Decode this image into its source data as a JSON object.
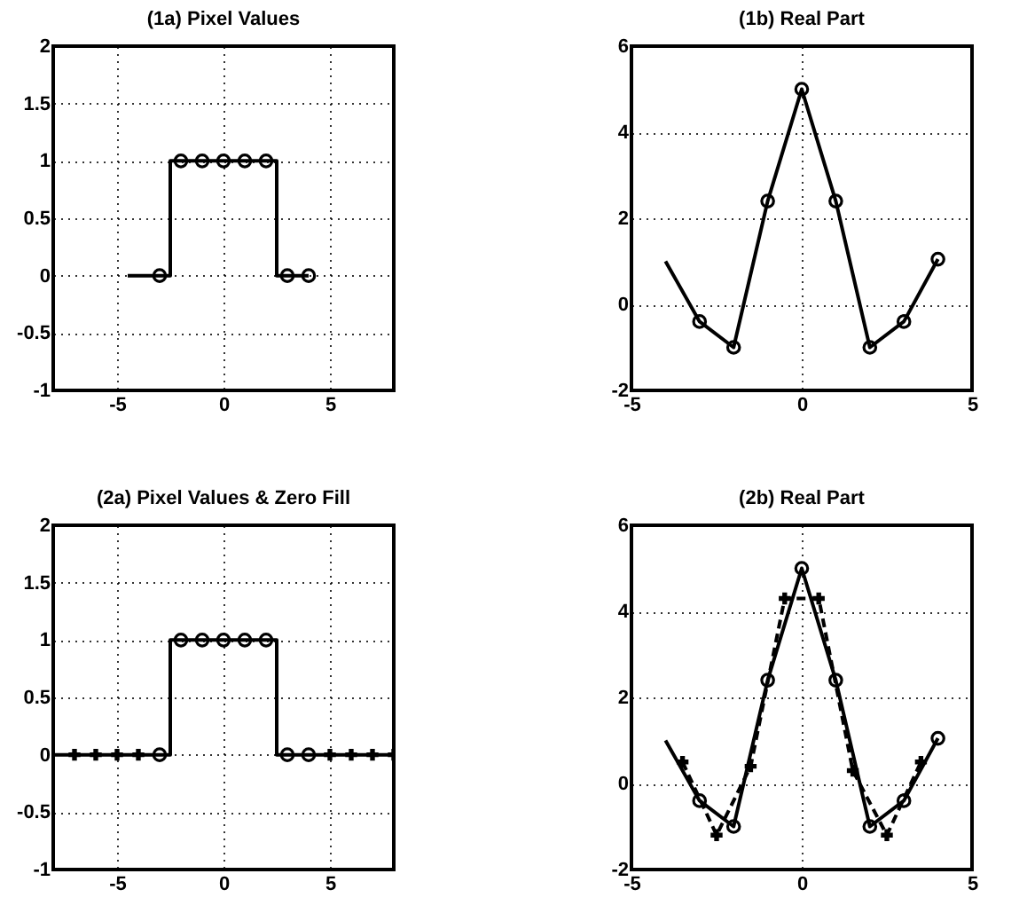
{
  "chart_data": [
    {
      "type": "line",
      "title": "(1a) Pixel Values",
      "xlim": [
        -8,
        8
      ],
      "xticks": [
        -5,
        0,
        5
      ],
      "ylim": [
        -1,
        2
      ],
      "yticks": [
        -1,
        -0.5,
        0,
        0.5,
        1,
        1.5,
        2
      ],
      "grid": true,
      "series": [
        {
          "type": "step",
          "color": "#000000",
          "line_style": "solid",
          "x": [
            -4.5,
            -3,
            -2,
            -1,
            0,
            1,
            2,
            3,
            4
          ],
          "values": [
            0,
            0,
            1,
            1,
            1,
            1,
            1,
            0,
            0
          ]
        },
        {
          "type": "scatter",
          "color": "#000000",
          "marker": "circle",
          "x": [
            -3,
            -2,
            -1,
            0,
            1,
            2,
            3,
            4
          ],
          "values": [
            0,
            1,
            1,
            1,
            1,
            1,
            0,
            0
          ]
        }
      ]
    },
    {
      "type": "line",
      "title": "(1b) Real Part",
      "xlim": [
        -5,
        5
      ],
      "xticks": [
        -5,
        0,
        5
      ],
      "ylim": [
        -2,
        6
      ],
      "yticks": [
        -2,
        0,
        2,
        4,
        6
      ],
      "grid": true,
      "series": [
        {
          "type": "line",
          "color": "#000000",
          "line_style": "solid",
          "x": [
            -4,
            -3,
            -2,
            -1,
            0,
            1,
            2,
            3,
            4
          ],
          "values": [
            1,
            -0.4,
            -1,
            2.4,
            5,
            2.4,
            -1,
            -0.4,
            1.05
          ]
        },
        {
          "type": "scatter",
          "color": "#000000",
          "marker": "circle",
          "x": [
            -3,
            -2,
            -1,
            0,
            1,
            2,
            3,
            4
          ],
          "values": [
            -0.4,
            -1,
            2.4,
            5,
            2.4,
            -1,
            -0.4,
            1.05
          ]
        }
      ]
    },
    {
      "type": "line",
      "title": "(2a) Pixel Values & Zero Fill",
      "xlim": [
        -8,
        8
      ],
      "xticks": [
        -5,
        0,
        5
      ],
      "ylim": [
        -1,
        2
      ],
      "yticks": [
        -1,
        -0.5,
        0,
        0.5,
        1,
        1.5,
        2
      ],
      "grid": true,
      "series": [
        {
          "type": "step",
          "color": "#000000",
          "line_style": "solid",
          "x": [
            -8,
            -7,
            -6,
            -5,
            -4,
            -3,
            -2,
            -1,
            0,
            1,
            2,
            3,
            4,
            5,
            6,
            7,
            8
          ],
          "values": [
            0,
            0,
            0,
            0,
            0,
            0,
            1,
            1,
            1,
            1,
            1,
            0,
            0,
            0,
            0,
            0,
            0
          ]
        },
        {
          "type": "scatter",
          "color": "#000000",
          "marker": "circle",
          "x": [
            -3,
            -2,
            -1,
            0,
            1,
            2,
            3,
            4
          ],
          "values": [
            0,
            1,
            1,
            1,
            1,
            1,
            0,
            0
          ]
        },
        {
          "type": "scatter",
          "color": "#000000",
          "marker": "cross",
          "x": [
            -7,
            -6,
            -5,
            -4,
            5,
            6,
            7,
            8
          ],
          "values": [
            0,
            0,
            0,
            0,
            0,
            0,
            0,
            0
          ]
        }
      ]
    },
    {
      "type": "line",
      "title": "(2b) Real Part",
      "xlim": [
        -5,
        5
      ],
      "xticks": [
        -5,
        0,
        5
      ],
      "ylim": [
        -2,
        6
      ],
      "yticks": [
        -2,
        0,
        2,
        4,
        6
      ],
      "grid": true,
      "series": [
        {
          "type": "line",
          "color": "#000000",
          "line_style": "solid",
          "x": [
            -4,
            -3,
            -2,
            -1,
            0,
            1,
            2,
            3,
            4
          ],
          "values": [
            1,
            -0.4,
            -1,
            2.4,
            5,
            2.4,
            -1,
            -0.4,
            1.05
          ]
        },
        {
          "type": "scatter",
          "color": "#000000",
          "marker": "circle",
          "x": [
            -3,
            -2,
            -1,
            0,
            1,
            2,
            3,
            4
          ],
          "values": [
            -0.4,
            -1,
            2.4,
            5,
            2.4,
            -1,
            -0.4,
            1.05
          ]
        },
        {
          "type": "line",
          "color": "#000000",
          "line_style": "dashed",
          "marker": "cross",
          "x": [
            -3.5,
            -2.5,
            -1.5,
            -0.5,
            0.5,
            1.5,
            2.5,
            3.5
          ],
          "values": [
            0.5,
            -1.2,
            0.4,
            4.3,
            4.3,
            0.3,
            -1.2,
            0.5
          ]
        }
      ]
    }
  ]
}
